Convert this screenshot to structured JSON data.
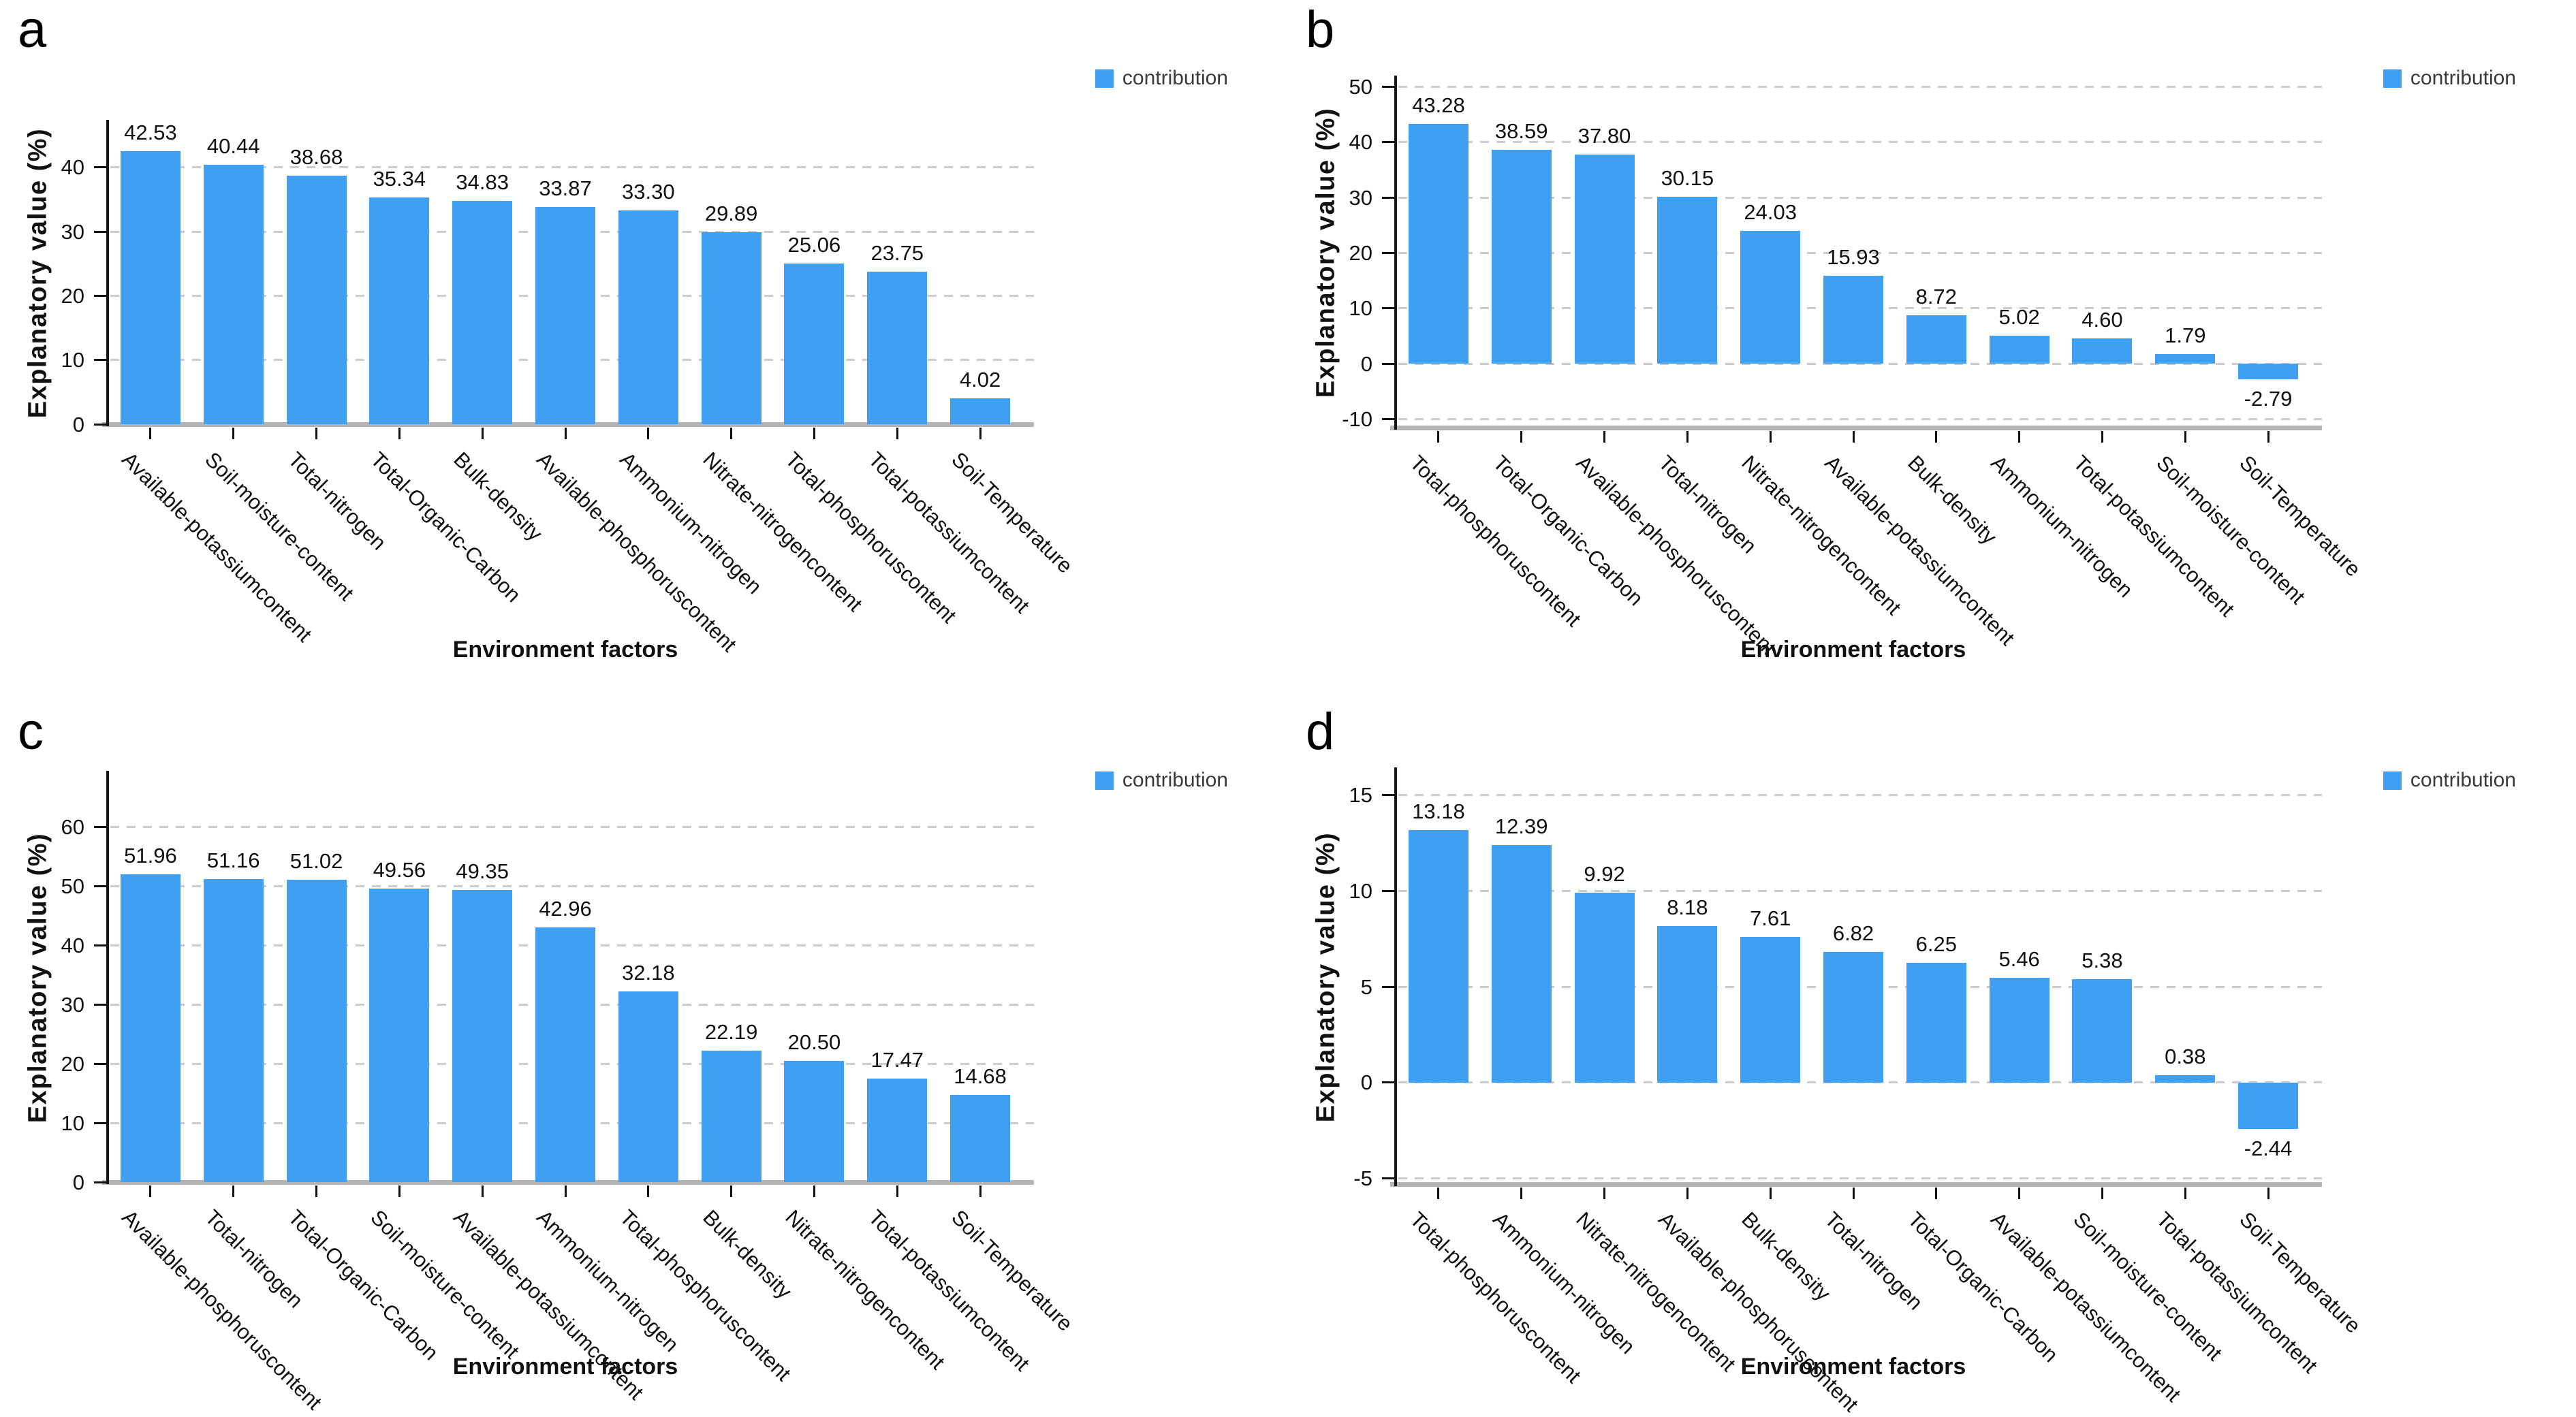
{
  "colors": {
    "bar_blue": "#3F9FF3",
    "gridline": "#CDCDCD",
    "baseline": "#B5B5B5",
    "axis": "#161616"
  },
  "chart_data": [
    {
      "type": "bar",
      "panel": "a",
      "title": "",
      "xlabel": "Environment factors",
      "ylabel": "Explanatory value (%)",
      "legend": [
        "contribution"
      ],
      "legend_position": "top-right",
      "grid": "horizontal-dashed",
      "bar_color": "#3F9FF3",
      "categories": [
        "Available-potassiumcontent",
        "Soil-moisture-content",
        "Total-nitrogen",
        "Total-Organic-Carbon",
        "Bulk-density",
        "Available-phosphoruscontent",
        "Ammonium-nitrogen",
        "Nitrate-nitrogencontent",
        "Total-phosphoruscontent",
        "Total-potassiumcontent",
        "Soil-Temperature"
      ],
      "values": [
        42.53,
        40.44,
        38.68,
        35.34,
        34.83,
        33.87,
        33.3,
        29.89,
        25.06,
        23.75,
        4.02
      ],
      "yticks": [
        0,
        10,
        20,
        30,
        40
      ],
      "ylim": [
        0,
        47
      ]
    },
    {
      "type": "bar",
      "panel": "b",
      "title": "",
      "xlabel": "Environment factors",
      "ylabel": "Explanatory value (%)",
      "legend": [
        "contribution"
      ],
      "legend_position": "top-right",
      "grid": "horizontal-dashed",
      "bar_color": "#3F9FF3",
      "categories": [
        "Total-phosphoruscontent",
        "Total-Organic-Carbon",
        "Available-phosphoruscontent",
        "Total-nitrogen",
        "Nitrate-nitrogencontent",
        "Available-potassiumcontent",
        "Bulk-density",
        "Ammonium-nitrogen",
        "Total-potassiumcontent",
        "Soil-moisture-content",
        "Soil-Temperature"
      ],
      "values": [
        43.28,
        38.59,
        37.8,
        30.15,
        24.03,
        15.93,
        8.72,
        5.02,
        4.6,
        1.79,
        -2.79
      ],
      "yticks": [
        -10,
        0,
        10,
        20,
        30,
        40,
        50
      ],
      "ylim": [
        -11.5,
        51.5
      ]
    },
    {
      "type": "bar",
      "panel": "c",
      "title": "",
      "xlabel": "Environment factors",
      "ylabel": "Explanatory value (%)",
      "legend": [
        "contribution"
      ],
      "legend_position": "top-right",
      "grid": "horizontal-dashed",
      "bar_color": "#3F9FF3",
      "categories": [
        "Available-phosphoruscontent",
        "Total-nitrogen",
        "Total-Organic-Carbon",
        "Soil-moisture-content",
        "Available-potassiumcontent",
        "Ammonium-nitrogen",
        "Total-phosphoruscontent",
        "Bulk-density",
        "Nitrate-nitrogencontent",
        "Total-potassiumcontent",
        "Soil-Temperature"
      ],
      "values": [
        51.96,
        51.16,
        51.02,
        49.56,
        49.35,
        42.96,
        32.18,
        22.19,
        20.5,
        17.47,
        14.68
      ],
      "yticks": [
        0,
        10,
        20,
        30,
        40,
        50,
        60
      ],
      "ylim": [
        0,
        69
      ]
    },
    {
      "type": "bar",
      "panel": "d",
      "title": "",
      "xlabel": "Environment factors",
      "ylabel": "Explanatory value (%)",
      "legend": [
        "contribution"
      ],
      "legend_position": "top-right",
      "grid": "horizontal-dashed",
      "bar_color": "#3F9FF3",
      "categories": [
        "Total-phosphoruscontent",
        "Ammonium-nitrogen",
        "Nitrate-nitrogencontent",
        "Available-phosphoruscontent",
        "Bulk-density",
        "Total-nitrogen",
        "Total-Organic-Carbon",
        "Available-potassiumcontent",
        "Soil-moisture-content",
        "Total-potassiumcontent",
        "Soil-Temperature"
      ],
      "values": [
        13.18,
        12.39,
        9.92,
        8.18,
        7.61,
        6.82,
        6.25,
        5.46,
        5.38,
        0.38,
        -2.44
      ],
      "yticks": [
        -5,
        0,
        5,
        10,
        15
      ],
      "ylim": [
        -5.3,
        16.3
      ]
    }
  ]
}
